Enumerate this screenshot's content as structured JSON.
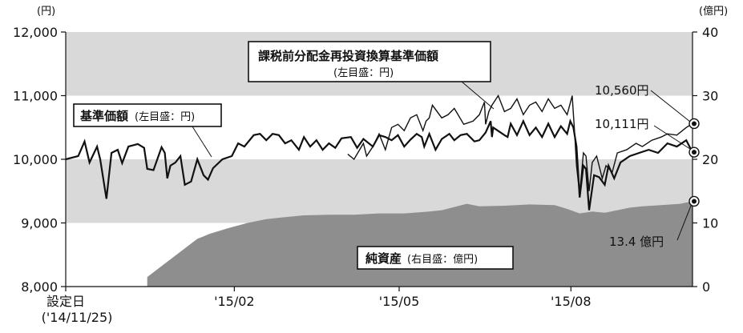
{
  "chart_data": {
    "type": "line",
    "title": "",
    "left_axis": {
      "unit": "(円)",
      "ylim": [
        8000,
        12000
      ],
      "ticks": [
        "8,000",
        "9,000",
        "10,000",
        "11,000",
        "12,000"
      ],
      "tick_values": [
        8000,
        9000,
        10000,
        11000,
        12000
      ]
    },
    "right_axis": {
      "unit": "(億円)",
      "ylim": [
        0,
        40
      ],
      "ticks": [
        "0",
        "10",
        "20",
        "30",
        "40"
      ],
      "tick_values": [
        0,
        10,
        20,
        30,
        40
      ]
    },
    "x_ticks": [
      {
        "label": "設定日",
        "sublabel": "('14/11/25)",
        "t": 0
      },
      {
        "label": "'15/02",
        "t": 0.269
      },
      {
        "label": "'15/05",
        "t": 0.532
      },
      {
        "label": "'15/08",
        "t": 0.806
      }
    ],
    "bands": [
      {
        "y0": 9000,
        "y1": 10000,
        "color": "#d9d9d9"
      },
      {
        "y0": 11000,
        "y1": 12000,
        "color": "#d9d9d9"
      }
    ],
    "series": [
      {
        "name": "基準価額",
        "axis": "left",
        "color": "#111111",
        "points": [
          [
            0,
            10000
          ],
          [
            0.02,
            10050
          ],
          [
            0.03,
            10280
          ],
          [
            0.038,
            9950
          ],
          [
            0.05,
            10200
          ],
          [
            0.055,
            10000
          ],
          [
            0.065,
            9380
          ],
          [
            0.073,
            10100
          ],
          [
            0.083,
            10150
          ],
          [
            0.09,
            9940
          ],
          [
            0.1,
            10200
          ],
          [
            0.115,
            10240
          ],
          [
            0.125,
            10180
          ],
          [
            0.13,
            9850
          ],
          [
            0.14,
            9830
          ],
          [
            0.153,
            10190
          ],
          [
            0.158,
            10100
          ],
          [
            0.162,
            9700
          ],
          [
            0.167,
            9900
          ],
          [
            0.175,
            9950
          ],
          [
            0.183,
            10050
          ],
          [
            0.19,
            9600
          ],
          [
            0.2,
            9650
          ],
          [
            0.21,
            10000
          ],
          [
            0.22,
            9750
          ],
          [
            0.227,
            9680
          ],
          [
            0.235,
            9860
          ],
          [
            0.25,
            10000
          ],
          [
            0.265,
            10050
          ],
          [
            0.275,
            10250
          ],
          [
            0.285,
            10200
          ],
          [
            0.3,
            10380
          ],
          [
            0.31,
            10400
          ],
          [
            0.32,
            10300
          ],
          [
            0.33,
            10400
          ],
          [
            0.34,
            10380
          ],
          [
            0.35,
            10250
          ],
          [
            0.36,
            10300
          ],
          [
            0.372,
            10150
          ],
          [
            0.38,
            10350
          ],
          [
            0.39,
            10200
          ],
          [
            0.4,
            10300
          ],
          [
            0.41,
            10150
          ],
          [
            0.42,
            10250
          ],
          [
            0.43,
            10180
          ],
          [
            0.44,
            10330
          ],
          [
            0.455,
            10350
          ],
          [
            0.465,
            10180
          ],
          [
            0.475,
            10320
          ],
          [
            0.49,
            10200
          ],
          [
            0.5,
            10380
          ],
          [
            0.51,
            10350
          ],
          [
            0.52,
            10300
          ],
          [
            0.53,
            10380
          ],
          [
            0.54,
            10200
          ],
          [
            0.55,
            10310
          ],
          [
            0.56,
            10400
          ],
          [
            0.568,
            10350
          ],
          [
            0.572,
            10200
          ],
          [
            0.58,
            10400
          ],
          [
            0.59,
            10150
          ],
          [
            0.6,
            10320
          ],
          [
            0.612,
            10400
          ],
          [
            0.62,
            10300
          ],
          [
            0.63,
            10380
          ],
          [
            0.64,
            10400
          ],
          [
            0.652,
            10280
          ],
          [
            0.66,
            10300
          ],
          [
            0.67,
            10420
          ],
          [
            0.678,
            10600
          ],
          [
            0.68,
            10350
          ],
          [
            0.682,
            10500
          ],
          [
            0.7,
            10380
          ],
          [
            0.705,
            10350
          ],
          [
            0.71,
            10560
          ],
          [
            0.72,
            10380
          ],
          [
            0.73,
            10600
          ],
          [
            0.74,
            10380
          ],
          [
            0.75,
            10500
          ],
          [
            0.76,
            10350
          ],
          [
            0.77,
            10560
          ],
          [
            0.78,
            10350
          ],
          [
            0.79,
            10520
          ],
          [
            0.8,
            10400
          ],
          [
            0.805,
            10600
          ],
          [
            0.81,
            10500
          ],
          [
            0.815,
            10200
          ],
          [
            0.82,
            9400
          ],
          [
            0.826,
            9900
          ],
          [
            0.83,
            9850
          ],
          [
            0.835,
            9200
          ],
          [
            0.843,
            9750
          ],
          [
            0.851,
            9720
          ],
          [
            0.86,
            9600
          ],
          [
            0.866,
            9900
          ],
          [
            0.875,
            9700
          ],
          [
            0.885,
            9950
          ],
          [
            0.9,
            10050
          ],
          [
            0.915,
            10100
          ],
          [
            0.93,
            10150
          ],
          [
            0.945,
            10100
          ],
          [
            0.96,
            10250
          ],
          [
            0.975,
            10200
          ],
          [
            0.99,
            10300
          ],
          [
            1.0,
            10111
          ]
        ]
      },
      {
        "name": "課税前分配金再投資換算基準価額",
        "axis": "left",
        "color": "#111111",
        "points": [
          [
            0.45,
            10080
          ],
          [
            0.46,
            10000
          ],
          [
            0.475,
            10250
          ],
          [
            0.48,
            10050
          ],
          [
            0.49,
            10200
          ],
          [
            0.5,
            10400
          ],
          [
            0.51,
            10150
          ],
          [
            0.52,
            10500
          ],
          [
            0.53,
            10550
          ],
          [
            0.54,
            10450
          ],
          [
            0.55,
            10650
          ],
          [
            0.56,
            10700
          ],
          [
            0.57,
            10450
          ],
          [
            0.575,
            10600
          ],
          [
            0.58,
            10650
          ],
          [
            0.585,
            10850
          ],
          [
            0.6,
            10650
          ],
          [
            0.61,
            10700
          ],
          [
            0.62,
            10800
          ],
          [
            0.635,
            10550
          ],
          [
            0.65,
            10600
          ],
          [
            0.66,
            10700
          ],
          [
            0.668,
            10900
          ],
          [
            0.67,
            10550
          ],
          [
            0.675,
            10750
          ],
          [
            0.68,
            10850
          ],
          [
            0.69,
            11000
          ],
          [
            0.7,
            10750
          ],
          [
            0.71,
            10800
          ],
          [
            0.72,
            10950
          ],
          [
            0.73,
            10700
          ],
          [
            0.74,
            10850
          ],
          [
            0.75,
            10900
          ],
          [
            0.76,
            10750
          ],
          [
            0.77,
            10950
          ],
          [
            0.78,
            10800
          ],
          [
            0.79,
            10850
          ],
          [
            0.8,
            10700
          ],
          [
            0.808,
            11000
          ],
          [
            0.812,
            10400
          ],
          [
            0.815,
            9900
          ],
          [
            0.82,
            9450
          ],
          [
            0.826,
            10100
          ],
          [
            0.83,
            10050
          ],
          [
            0.835,
            9500
          ],
          [
            0.84,
            9950
          ],
          [
            0.847,
            10050
          ],
          [
            0.856,
            9700
          ],
          [
            0.862,
            9900
          ],
          [
            0.872,
            9800
          ],
          [
            0.88,
            10100
          ],
          [
            0.895,
            10150
          ],
          [
            0.91,
            10250
          ],
          [
            0.92,
            10200
          ],
          [
            0.935,
            10300
          ],
          [
            0.95,
            10350
          ],
          [
            0.96,
            10400
          ],
          [
            0.975,
            10380
          ],
          [
            0.99,
            10500
          ],
          [
            1.0,
            10560
          ]
        ]
      },
      {
        "name": "純資産",
        "axis": "right",
        "type": "area",
        "color": "#8e8e8e",
        "points": [
          [
            0.13,
            0
          ],
          [
            0.13,
            1.5
          ],
          [
            0.15,
            3
          ],
          [
            0.17,
            4.5
          ],
          [
            0.19,
            6
          ],
          [
            0.21,
            7.5
          ],
          [
            0.23,
            8.3
          ],
          [
            0.26,
            9.2
          ],
          [
            0.29,
            10
          ],
          [
            0.32,
            10.6
          ],
          [
            0.35,
            10.9
          ],
          [
            0.38,
            11.2
          ],
          [
            0.42,
            11.3
          ],
          [
            0.46,
            11.3
          ],
          [
            0.5,
            11.5
          ],
          [
            0.54,
            11.5
          ],
          [
            0.58,
            11.8
          ],
          [
            0.6,
            12
          ],
          [
            0.62,
            12.5
          ],
          [
            0.64,
            13
          ],
          [
            0.66,
            12.6
          ],
          [
            0.7,
            12.7
          ],
          [
            0.74,
            12.9
          ],
          [
            0.78,
            12.8
          ],
          [
            0.8,
            12.2
          ],
          [
            0.82,
            11.5
          ],
          [
            0.84,
            11.8
          ],
          [
            0.86,
            11.6
          ],
          [
            0.88,
            12
          ],
          [
            0.9,
            12.4
          ],
          [
            0.92,
            12.6
          ],
          [
            0.95,
            12.8
          ],
          [
            0.98,
            13
          ],
          [
            1.0,
            13.4
          ]
        ]
      }
    ],
    "labels": {
      "nav": "基準価額",
      "nav_sub": "(左目盛：円)",
      "reinvested": "課税前分配金再投資換算基準価額",
      "reinvested_sub": "(左目盛：円)",
      "assets": "純資産",
      "assets_sub": "(右目盛：億円)"
    },
    "end_values": {
      "reinvested": "10,560円",
      "nav": "10,111円",
      "assets": "13.4 億円"
    }
  }
}
